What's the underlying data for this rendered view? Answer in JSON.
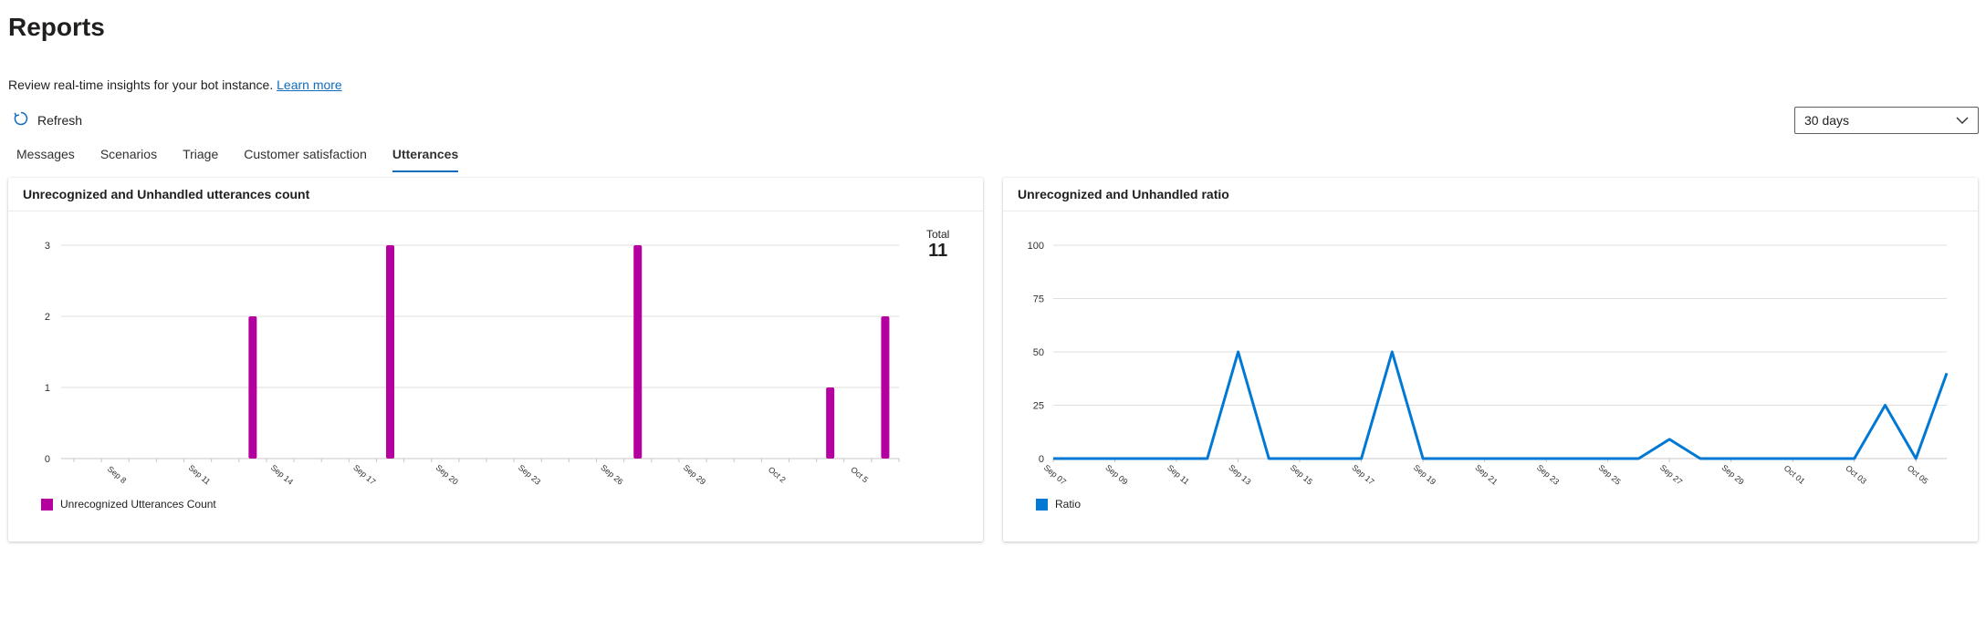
{
  "page": {
    "title": "Reports",
    "subtitle": "Review real-time insights for your bot instance.",
    "learn_more": "Learn more",
    "refresh_label": "Refresh",
    "date_range": "30 days",
    "tabs": [
      {
        "label": "Messages"
      },
      {
        "label": "Scenarios"
      },
      {
        "label": "Triage"
      },
      {
        "label": "Customer satisfaction"
      },
      {
        "label": "Utterances"
      }
    ],
    "active_tab": "Utterances"
  },
  "icons": [
    "refresh-icon",
    "chevron-down-icon"
  ],
  "colors": {
    "accent": "#0f6cbd",
    "bar": "#b4009e",
    "line": "#0078d4"
  },
  "cards": {
    "count": {
      "title": "Unrecognized and Unhandled utterances count",
      "total_label": "Total",
      "total_value": "11"
    },
    "ratio": {
      "title": "Unrecognized and Unhandled ratio"
    }
  },
  "chart_data": [
    {
      "type": "bar",
      "title": "Unrecognized and Unhandled utterances count",
      "series": [
        {
          "name": "Unrecognized Utterances Count",
          "color": "#b4009e"
        }
      ],
      "bars": [
        {
          "x": "Sep 13",
          "value": 2
        },
        {
          "x": "Sep 18",
          "value": 3
        },
        {
          "x": "Sep 27",
          "value": 3
        },
        {
          "x": "Oct 4",
          "value": 1
        },
        {
          "x": "Oct 6",
          "value": 2
        }
      ],
      "x_ticks": [
        "Sep 8",
        "Sep 11",
        "Sep 14",
        "Sep 17",
        "Sep 20",
        "Sep 23",
        "Sep 26",
        "Sep 29",
        "Oct 2",
        "Oct 5"
      ],
      "x_range": [
        "Sep 7",
        "Oct 6"
      ],
      "y_ticks": [
        0,
        1,
        2,
        3
      ],
      "ylim": [
        0,
        3
      ],
      "grid": true,
      "legend": "bottom-left"
    },
    {
      "type": "line",
      "title": "Unrecognized and Unhandled ratio",
      "series": [
        {
          "name": "Ratio",
          "color": "#0078d4",
          "x": [
            "Sep 07",
            "Sep 08",
            "Sep 09",
            "Sep 10",
            "Sep 11",
            "Sep 12",
            "Sep 13",
            "Sep 14",
            "Sep 15",
            "Sep 16",
            "Sep 17",
            "Sep 18",
            "Sep 19",
            "Sep 20",
            "Sep 21",
            "Sep 22",
            "Sep 23",
            "Sep 24",
            "Sep 25",
            "Sep 26",
            "Sep 27",
            "Sep 28",
            "Sep 29",
            "Sep 30",
            "Oct 01",
            "Oct 02",
            "Oct 03",
            "Oct 04",
            "Oct 05",
            "Oct 06"
          ],
          "values": [
            0,
            0,
            0,
            0,
            0,
            0,
            50,
            0,
            0,
            0,
            0,
            50,
            0,
            0,
            0,
            0,
            0,
            0,
            0,
            0,
            9,
            0,
            0,
            0,
            0,
            0,
            0,
            25,
            0,
            40
          ]
        }
      ],
      "x_ticks": [
        "Sep 07",
        "Sep 09",
        "Sep 11",
        "Sep 13",
        "Sep 15",
        "Sep 17",
        "Sep 19",
        "Sep 21",
        "Sep 23",
        "Sep 25",
        "Sep 27",
        "Sep 29",
        "Oct 01",
        "Oct 03",
        "Oct 05"
      ],
      "y_ticks": [
        0,
        25,
        50,
        75,
        100
      ],
      "ylim": [
        0,
        100
      ],
      "grid": true,
      "legend": "bottom-left"
    }
  ]
}
